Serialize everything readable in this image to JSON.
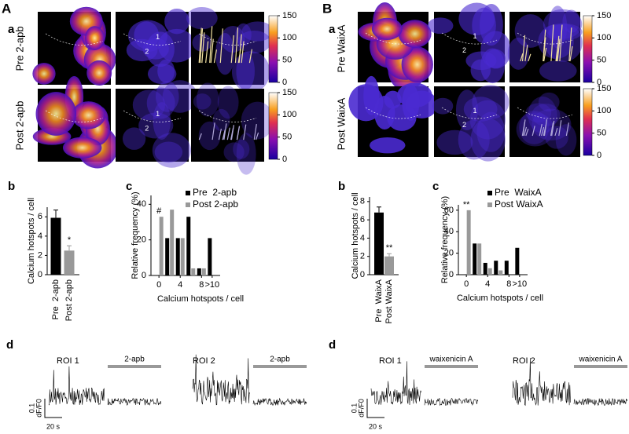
{
  "labels": {
    "A": "A",
    "B": "B",
    "a": "a",
    "b": "b",
    "c": "c",
    "d": "d"
  },
  "rows": [
    "Pre 2-apb",
    "Post 2-apb",
    "Pre WaixA",
    "Post WaixA"
  ],
  "colorbar_ticks": [
    0,
    50,
    100,
    150
  ],
  "roi_marks": [
    "1",
    "2"
  ],
  "traces": [
    {
      "roi1": "ROI 1",
      "drug": "2-apb",
      "roi2": "ROI 2",
      "scale_y": "0.1",
      "scale_unit": "dF/F0",
      "scale_x": "20 s"
    },
    {
      "roi1": "ROI 1",
      "drug": "waixenicin A",
      "roi2": "ROI 2",
      "scale_y": "0.1",
      "scale_unit": "dF/F0",
      "scale_x": "20 s"
    }
  ],
  "chart_data": [
    {
      "type": "bar",
      "categories": [
        "Pre  2-apb",
        "Post 2-apb"
      ],
      "values": [
        5.9,
        2.5
      ],
      "errors": [
        0.8,
        0.5
      ],
      "colors": [
        "#000000",
        "#999999"
      ],
      "ylabel": "Calcium hotspots / cell",
      "ylim": [
        0,
        7
      ],
      "yticks": [
        0,
        2,
        4,
        6
      ],
      "annotation": "*"
    },
    {
      "type": "grouped",
      "x": [
        0,
        2,
        4,
        6,
        8,
        10
      ],
      "xlim": [
        -1.5,
        11.5
      ],
      "xticks": [
        0,
        4,
        8,
        {
          "value": 10,
          "label": ">10"
        }
      ],
      "series": [
        {
          "name": "Pre  2-apb",
          "color": "#000000",
          "values": [
            0,
            21,
            21,
            33,
            4,
            21
          ]
        },
        {
          "name": "Post 2-apb",
          "color": "#999999",
          "values": [
            33,
            37,
            21,
            4,
            4,
            0
          ]
        }
      ],
      "xlabel": "Calcium hotspots / cell",
      "ylabel": "Relative frequency (%)",
      "ylim": [
        0,
        45
      ],
      "yticks": [
        0,
        20,
        40
      ],
      "annotation": "#"
    },
    {
      "type": "bar",
      "categories": [
        "Pre  WaixA",
        "Post WaixA"
      ],
      "values": [
        6.8,
        2.0
      ],
      "errors": [
        0.6,
        0.3
      ],
      "colors": [
        "#000000",
        "#999999"
      ],
      "ylabel": "Calcium hotspots / cell",
      "ylim": [
        0,
        8.5
      ],
      "yticks": [
        0,
        2,
        4,
        6,
        8
      ],
      "annotation": "**"
    },
    {
      "type": "grouped",
      "x": [
        0,
        2,
        4,
        6,
        8,
        10
      ],
      "xlim": [
        -1.5,
        11.5
      ],
      "xticks": [
        0,
        4,
        8,
        {
          "value": 10,
          "label": ">10"
        }
      ],
      "series": [
        {
          "name": "Pre  WaixA",
          "color": "#000000",
          "values": [
            0,
            29,
            11,
            13,
            13,
            25
          ]
        },
        {
          "name": "Post WaixA",
          "color": "#999999",
          "values": [
            60,
            29,
            6,
            4,
            0,
            0
          ]
        }
      ],
      "xlabel": "Calcium hotspots / cell",
      "ylabel": "Relative frequency (%)",
      "ylim": [
        0,
        65
      ],
      "yticks": [
        0,
        20,
        40,
        60
      ],
      "annotation": "**"
    }
  ]
}
